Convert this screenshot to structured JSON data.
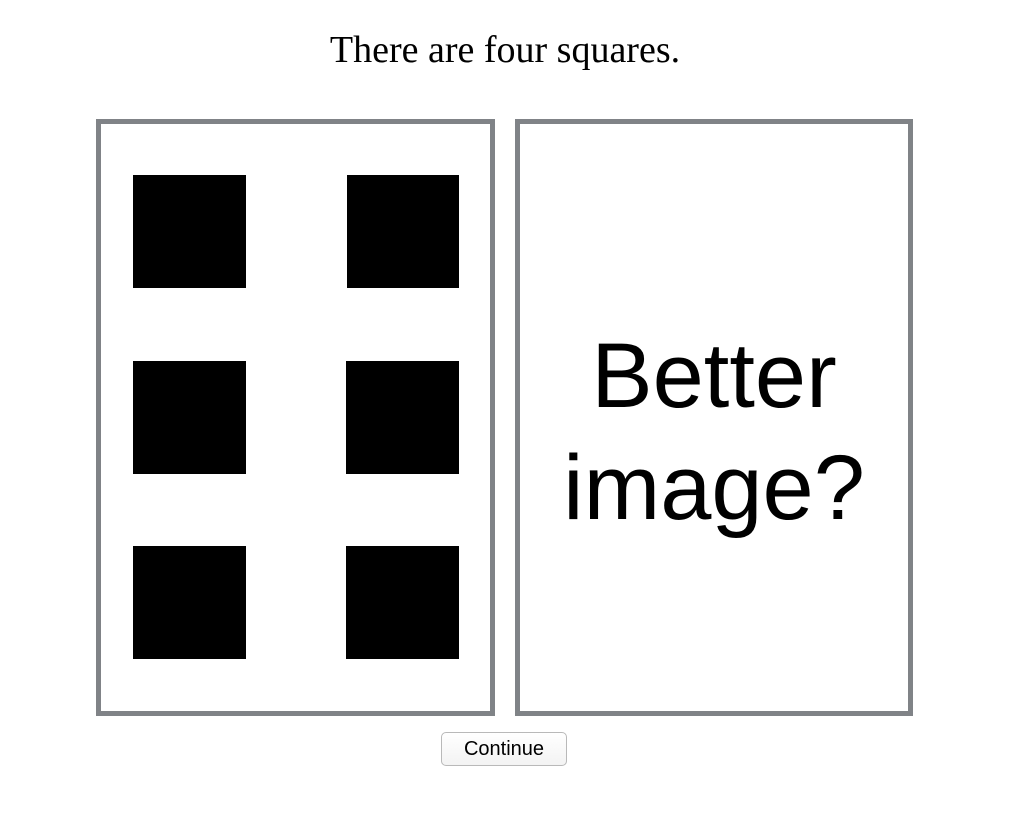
{
  "prompt": "There are four squares.",
  "right_card": {
    "line1": "Better",
    "line2": "image?"
  },
  "continue_button": "Continue",
  "colors": {
    "card_border": "#808387",
    "square_fill": "#000000",
    "background": "#ffffff"
  }
}
